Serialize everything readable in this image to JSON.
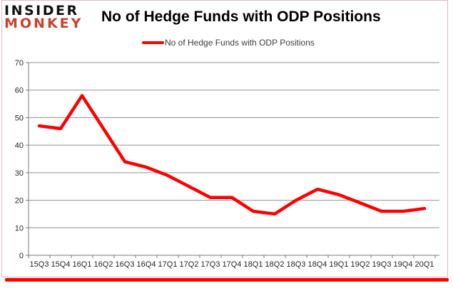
{
  "logo": {
    "line1": "INSIDER",
    "line2": "MONKEY"
  },
  "header": {
    "title": "No of Hedge Funds with ODP Positions"
  },
  "legend": {
    "label": "No of Hedge Funds with ODP Positions"
  },
  "colors": {
    "series": "#fe0000",
    "logo_red": "#c8432b",
    "grid": "#909090",
    "axis": "#7a7a7a",
    "tick_text": "#262626",
    "frame_border": "#e0bcbc",
    "bottom_bar": "#fe0000"
  },
  "chart_data": {
    "type": "line",
    "title": "No of Hedge Funds with ODP Positions",
    "categories": [
      "15Q3",
      "15Q4",
      "16Q1",
      "16Q2",
      "16Q3",
      "16Q4",
      "17Q1",
      "17Q2",
      "17Q3",
      "17Q4",
      "18Q1",
      "18Q2",
      "18Q3",
      "18Q4",
      "19Q1",
      "19Q2",
      "19Q3",
      "19Q4",
      "20Q1"
    ],
    "series": [
      {
        "name": "No of Hedge Funds with ODP Positions",
        "values": [
          47,
          46,
          58,
          46,
          34,
          32,
          29,
          25,
          21,
          21,
          16,
          15,
          20,
          24,
          22,
          19,
          16,
          16,
          17
        ]
      }
    ],
    "xlabel": "",
    "ylabel": "",
    "ylim": [
      0,
      70
    ],
    "yticks": [
      0,
      10,
      20,
      30,
      40,
      50,
      60,
      70
    ],
    "grid": true,
    "legend_position": "top-center"
  }
}
